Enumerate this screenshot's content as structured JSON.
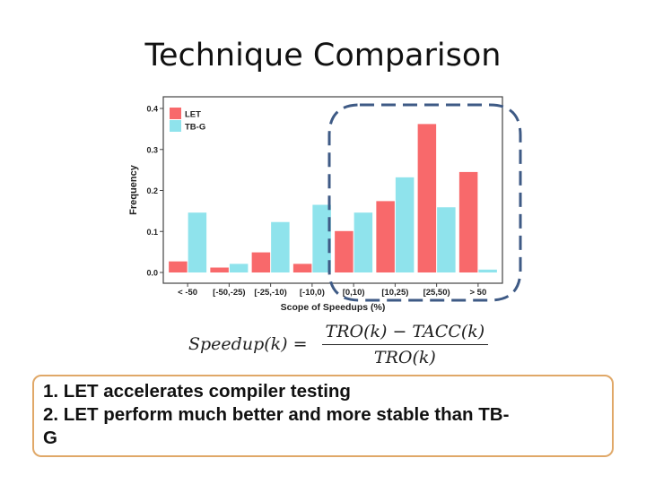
{
  "slide": {
    "title": "Technique Comparison",
    "formula": {
      "lhs": "Speedup(k) =",
      "numerator": "TRO(k) − TACC(k)",
      "denominator": "TRO(k)"
    },
    "notes": [
      "1. LET accelerates compiler testing",
      "2. LET perform much better and more stable than TB-",
      "G"
    ]
  },
  "colors": {
    "LET": "#f8696b",
    "TB-G": "#8fe3ec",
    "highlight": "#3e5a85",
    "note_border": "#e0a868"
  },
  "chart_data": {
    "type": "bar",
    "categories": [
      "< -50",
      "[-50,-25)",
      "[-25,-10)",
      "[-10,0)",
      "[0,10)",
      "[10,25)",
      "[25,50)",
      "> 50"
    ],
    "series": [
      {
        "name": "LET",
        "values": [
          0.027,
          0.012,
          0.049,
          0.021,
          0.101,
          0.174,
          0.362,
          0.245
        ]
      },
      {
        "name": "TB-G",
        "values": [
          0.146,
          0.021,
          0.123,
          0.165,
          0.146,
          0.232,
          0.159,
          0.007
        ]
      }
    ],
    "xlabel": "Scope of Speedups (%)",
    "ylabel": "Frequency",
    "ylim": [
      0,
      0.4
    ],
    "yticks": [
      0.0,
      0.1,
      0.2,
      0.3,
      0.4
    ],
    "ytick_labels": [
      "0.0",
      "0.1",
      "0.2",
      "0.3",
      "0.4"
    ],
    "legend_position": "top-left",
    "grid": false,
    "highlighted_categories": [
      "[0,10)",
      "[10,25)",
      "[25,50)",
      "> 50"
    ]
  }
}
